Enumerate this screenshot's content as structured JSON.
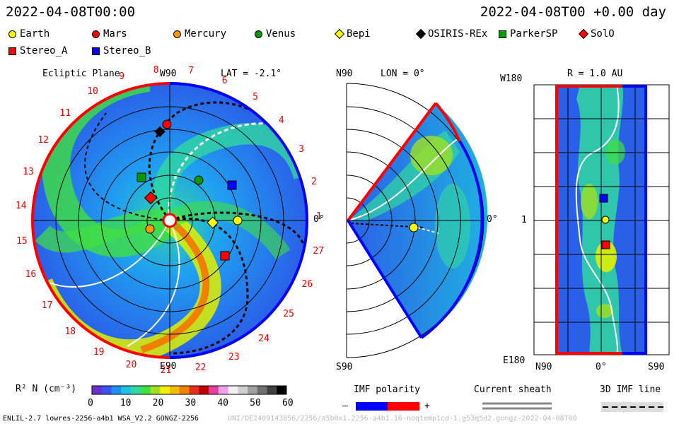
{
  "header": {
    "time_left": "2022-04-08T00:00",
    "time_right": "2022-04-08T00 +0.00 day"
  },
  "legend": [
    {
      "label": "Earth",
      "shape": "circle",
      "color": "#ffff00"
    },
    {
      "label": "Mars",
      "shape": "circle",
      "color": "#ff0000"
    },
    {
      "label": "Mercury",
      "shape": "circle",
      "color": "#ff9900"
    },
    {
      "label": "Venus",
      "shape": "circle",
      "color": "#009900"
    },
    {
      "label": "Bepi",
      "shape": "diamond",
      "color": "#ffff00"
    },
    {
      "label": "OSIRIS-REx",
      "shape": "diamond",
      "color": "#000000"
    },
    {
      "label": "ParkerSP",
      "shape": "square",
      "color": "#009900"
    },
    {
      "label": "SolO",
      "shape": "diamond",
      "color": "#ff0000"
    },
    {
      "label": "Stereo_A",
      "shape": "square",
      "color": "#ff0000"
    },
    {
      "label": "Stereo_B",
      "shape": "square",
      "color": "#0000ff"
    }
  ],
  "ecliptic": {
    "title": "Ecliptic Plane",
    "top_label": "W90",
    "bottom_label": "E90",
    "right_label": "0°",
    "lat_label": "LAT = -2.1°",
    "carrington_numbers": [
      "1",
      "2",
      "3",
      "4",
      "5",
      "6",
      "7",
      "8",
      "9",
      "10",
      "11",
      "12",
      "13",
      "14",
      "15",
      "16",
      "17",
      "18",
      "19",
      "20",
      "21",
      "22",
      "23",
      "24",
      "25",
      "26",
      "27"
    ]
  },
  "meridional": {
    "n_label": "N90",
    "s_label": "S90",
    "lon_label": "LON = 0°",
    "right_label": "0°"
  },
  "sphere": {
    "title": "R = 1.0 AU",
    "w_label": "W180",
    "e_label": "E180",
    "mid_label": "1",
    "x_labels": [
      "N90",
      "0°",
      "S90"
    ]
  },
  "colorbar": {
    "label": "R² N (cm⁻³)",
    "ticks": [
      "0",
      "10",
      "20",
      "30",
      "40",
      "50",
      "60"
    ],
    "colors": [
      "#6a30c8",
      "#3c50f0",
      "#2090f0",
      "#20c0e0",
      "#30d8a0",
      "#40e040",
      "#a0e020",
      "#f0f000",
      "#f0c000",
      "#f08000",
      "#e83020",
      "#c00000",
      "#e040a0",
      "#f0a0f0",
      "#f0f0f0",
      "#d0d0d0",
      "#a0a0a0",
      "#707070",
      "#404040",
      "#000000"
    ]
  },
  "imf": {
    "title": "IMF polarity",
    "minus": "–",
    "plus": "+"
  },
  "current_sheath": {
    "title": "Current sheath"
  },
  "imf_line": {
    "title": "3D IMF line"
  },
  "footer": {
    "left": "ENLIL-2.7 lowres-2256-a4b1 WSA_V2.2 GONGZ-2256",
    "right": "UNI/DE2409143856/2256/a5b0x1.2256-a4b1.16-noqtemp1cd-1.g53q5d2.gongz-2022-04-08T00"
  }
}
